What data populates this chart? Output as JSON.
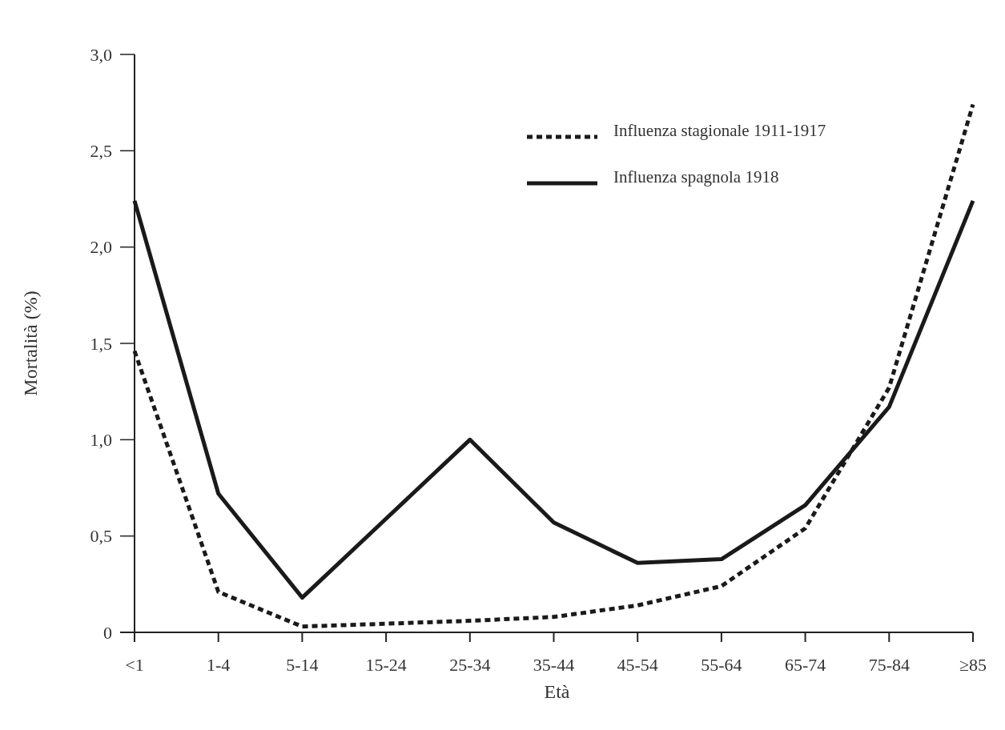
{
  "chart_data": {
    "type": "line",
    "xlabel": "Età",
    "ylabel": "Mortalità (%)",
    "categories": [
      "<1",
      "1-4",
      "5-14",
      "15-24",
      "25-34",
      "35-44",
      "45-54",
      "55-64",
      "65-74",
      "75-84",
      "≥85"
    ],
    "series": [
      {
        "name": "Influenza stagionale 1911-1917",
        "color": "#1a1a1a",
        "line_style": "dotted",
        "values": [
          1.46,
          0.21,
          0.03,
          0.045,
          0.06,
          0.08,
          0.14,
          0.24,
          0.54,
          1.27,
          2.74
        ]
      },
      {
        "name": "Influenza spagnola 1918",
        "color": "#1a1a1a",
        "line_style": "solid",
        "values": [
          2.24,
          0.72,
          0.18,
          0.59,
          1.0,
          0.57,
          0.36,
          0.38,
          0.66,
          1.17,
          2.24
        ]
      }
    ],
    "ylim": [
      0,
      3
    ],
    "yticks": [
      {
        "value": 0,
        "label": "0"
      },
      {
        "value": 0.5,
        "label": "0,5"
      },
      {
        "value": 1,
        "label": "1,0"
      },
      {
        "value": 1.5,
        "label": "1,5"
      },
      {
        "value": 2,
        "label": "2,0"
      },
      {
        "value": 2.5,
        "label": "2,5"
      },
      {
        "value": 3,
        "label": "3,0"
      }
    ],
    "legend": "top right",
    "grid": false
  }
}
